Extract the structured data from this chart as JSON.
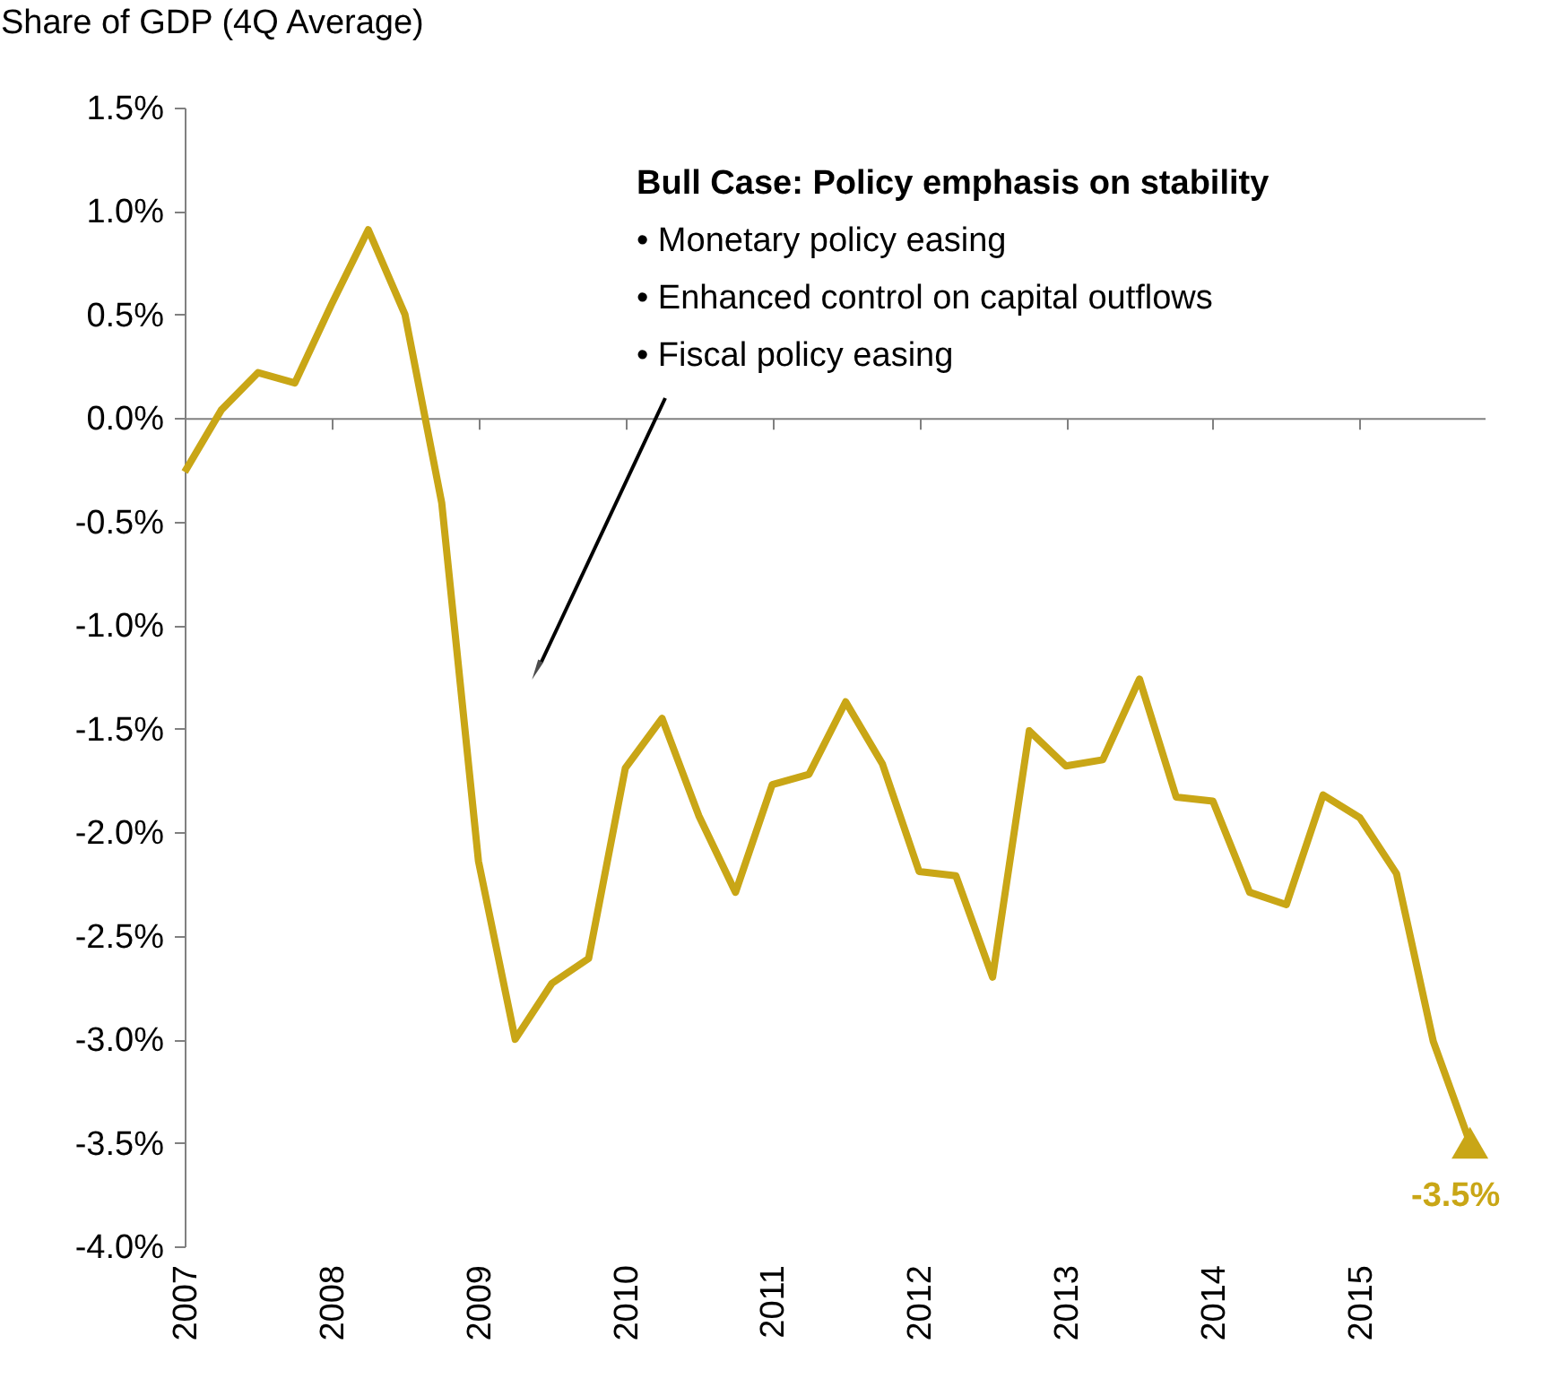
{
  "chart_data": {
    "type": "line",
    "ylabel": "Share of GDP (4Q Average)",
    "x": [
      2007,
      2007.25,
      2007.5,
      2007.75,
      2008,
      2008.25,
      2008.5,
      2008.75,
      2009,
      2009.25,
      2009.5,
      2009.75,
      2010,
      2010.25,
      2010.5,
      2010.75,
      2011,
      2011.25,
      2011.5,
      2011.75,
      2012,
      2012.25,
      2012.5,
      2012.75,
      2013,
      2013.25,
      2013.5,
      2013.75,
      2014,
      2014.25,
      2014.5,
      2014.75,
      2015,
      2015.25,
      2015.5,
      2015.75
    ],
    "series": [
      {
        "color": "#c9a616",
        "values": [
          -0.26,
          0.04,
          0.22,
          0.17,
          0.55,
          0.91,
          0.5,
          -0.41,
          -2.14,
          -3.0,
          -2.73,
          -2.61,
          -1.69,
          -1.45,
          -1.92,
          -2.29,
          -1.77,
          -1.72,
          -1.37,
          -1.67,
          -2.19,
          -2.21,
          -2.7,
          -1.51,
          -1.68,
          -1.65,
          -1.26,
          -1.83,
          -1.85,
          -2.29,
          -2.35,
          -1.82,
          -1.93,
          -2.2,
          -3.01,
          -3.5
        ]
      }
    ],
    "xlim": [
      2007,
      2015.85
    ],
    "xticks": [
      2007,
      2008,
      2009,
      2010,
      2011,
      2012,
      2013,
      2014,
      2015
    ],
    "ylim": [
      -4.0,
      1.5
    ],
    "yticks": [
      {
        "value": -4.0,
        "label": "-4.0%"
      },
      {
        "value": -3.5,
        "label": "-3.5%"
      },
      {
        "value": -3.0,
        "label": "-3.0%"
      },
      {
        "value": -2.5,
        "label": "-2.5%"
      },
      {
        "value": -2.0,
        "label": "-2.0%"
      },
      {
        "value": -1.5,
        "label": "-1.5%"
      },
      {
        "value": -1.0,
        "label": "-1.0%"
      },
      {
        "value": -0.5,
        "label": "-0.5%"
      },
      {
        "value": 0.0,
        "label": "0.0%"
      },
      {
        "value": 0.5,
        "label": "0.5%"
      },
      {
        "value": 1.0,
        "label": "1.0%"
      },
      {
        "value": 1.5,
        "label": "1.5%"
      }
    ],
    "marker": "none",
    "line_style": "solid",
    "annotations": [
      "Bull Case: Policy emphasis on stability",
      "• Monetary policy easing",
      "• Enhanced control on capital outflows",
      "• Fiscal policy easing",
      {
        "text": "-3.5%",
        "x": 2015.75,
        "y": -3.5
      }
    ]
  }
}
